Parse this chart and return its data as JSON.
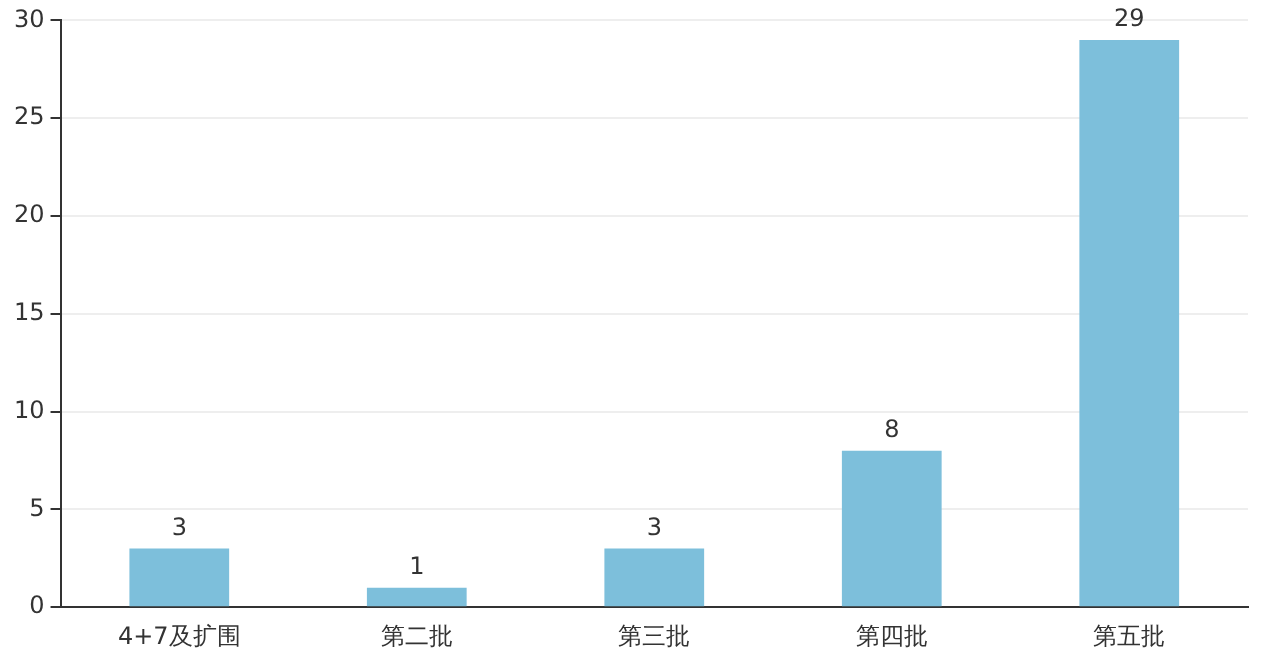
{
  "chart_data": {
    "type": "bar",
    "categories": [
      "4+7及扩围",
      "第二批",
      "第三批",
      "第四批",
      "第五批"
    ],
    "values": [
      3,
      1,
      3,
      8,
      29
    ],
    "color": "#7dbfdb",
    "ylim": [
      0,
      30
    ],
    "yticks": [
      0,
      5,
      10,
      15,
      20,
      25,
      30
    ],
    "grid": "y",
    "data_labels": true,
    "legend": false
  }
}
